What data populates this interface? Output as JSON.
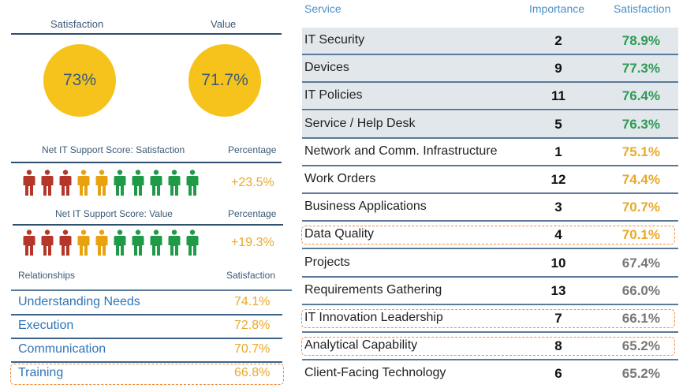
{
  "summary": {
    "satisfaction_label": "Satisfaction",
    "value_label": "Value",
    "satisfaction": "73%",
    "value": "71.7%",
    "circle_color": "#f6c31c"
  },
  "nits_satisfaction": {
    "label": "Net IT Support Score: Satisfaction",
    "pct_label": "Percentage",
    "value": "+23.5%",
    "people": {
      "red": 3,
      "yellow": 2,
      "green": 5
    }
  },
  "nits_value": {
    "label": "Net IT Support Score: Value",
    "pct_label": "Percentage",
    "value": "+19.3%",
    "people": {
      "red": 3,
      "yellow": 2,
      "green": 5
    }
  },
  "colors": {
    "red": "#b5372a",
    "yellow": "#e9a20f",
    "green": "#1f9b48",
    "high": "#2e9a55",
    "mid": "#e8a92b",
    "low": "#777777"
  },
  "relationships": {
    "label": "Relationships",
    "sat_label": "Satisfaction",
    "items": [
      {
        "name": "Understanding Needs",
        "value": "74.1%"
      },
      {
        "name": "Execution",
        "value": "72.8%"
      },
      {
        "name": "Communication",
        "value": "70.7%"
      },
      {
        "name": "Training",
        "value": "66.8%",
        "highlight": true
      }
    ]
  },
  "services": {
    "headers": {
      "service": "Service",
      "importance": "Importance",
      "satisfaction": "Satisfaction"
    },
    "rows": [
      {
        "name": "IT Security",
        "importance": "2",
        "satisfaction": "78.9%",
        "level": "high"
      },
      {
        "name": "Devices",
        "importance": "9",
        "satisfaction": "77.3%",
        "level": "high"
      },
      {
        "name": "IT Policies",
        "importance": "11",
        "satisfaction": "76.4%",
        "level": "high"
      },
      {
        "name": "Service / Help Desk",
        "importance": "5",
        "satisfaction": "76.3%",
        "level": "high"
      },
      {
        "name": "Network and Comm. Infrastructure",
        "importance": "1",
        "satisfaction": "75.1%",
        "level": "mid"
      },
      {
        "name": "Work Orders",
        "importance": "12",
        "satisfaction": "74.4%",
        "level": "mid"
      },
      {
        "name": "Business Applications",
        "importance": "3",
        "satisfaction": "70.7%",
        "level": "mid"
      },
      {
        "name": "Data Quality",
        "importance": "4",
        "satisfaction": "70.1%",
        "level": "mid",
        "highlight": true
      },
      {
        "name": "Projects",
        "importance": "10",
        "satisfaction": "67.4%",
        "level": "low"
      },
      {
        "name": "Requirements Gathering",
        "importance": "13",
        "satisfaction": "66.0%",
        "level": "low"
      },
      {
        "name": "IT Innovation Leadership",
        "importance": "7",
        "satisfaction": "66.1%",
        "level": "low",
        "highlight": true
      },
      {
        "name": "Analytical Capability",
        "importance": "8",
        "satisfaction": "65.2%",
        "level": "low",
        "highlight": true
      },
      {
        "name": "Client-Facing Technology",
        "importance": "6",
        "satisfaction": "65.2%",
        "level": "low"
      }
    ]
  }
}
